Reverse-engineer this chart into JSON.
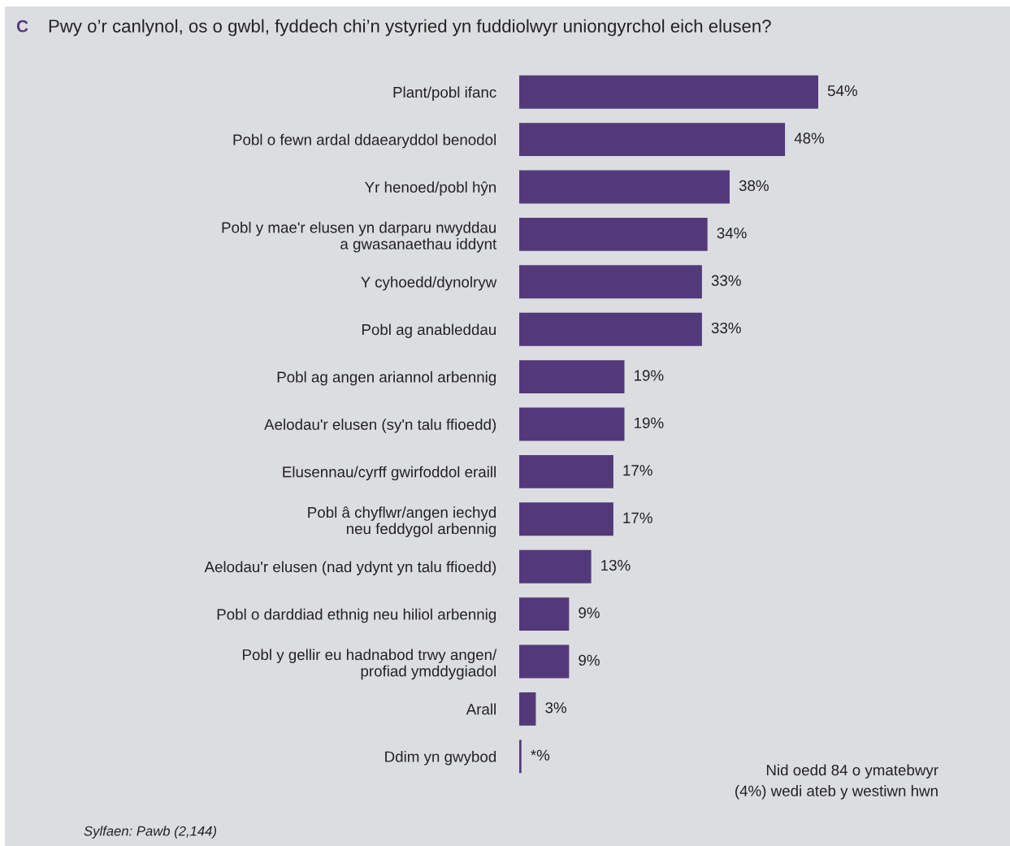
{
  "chart_data": {
    "type": "bar",
    "orientation": "horizontal",
    "title": "C",
    "subtitle": "Pwy o’r canlynol, os o gwbl, fyddech chi’n ystyried yn fuddiolwyr uniongyrchol eich elusen?",
    "categories": [
      "Plant/pobl ifanc",
      "Pobl o fewn ardal ddaearyddol benodol",
      "Yr henoed/pobl hŷn",
      "Pobl y mae'r elusen yn darparu nwyddau\na gwasanaethau iddynt",
      "Y cyhoedd/dynolryw",
      "Pobl ag anableddau",
      "Pobl ag angen ariannol arbennig",
      "Aelodau'r elusen (sy'n talu ffioedd)",
      "Elusennau/cyrff gwirfoddol eraill",
      "Pobl â chyflwr/angen iechyd\nneu feddygol arbennig",
      "Aelodau'r elusen (nad ydynt yn talu ffioedd)",
      "Pobl o darddiad ethnig neu hiliol arbennig",
      "Pobl y gellir eu hadnabod trwy angen/\nprofiad ymddygiadol",
      "Arall",
      "Ddim yn gwybod"
    ],
    "values": [
      54,
      48,
      38,
      34,
      33,
      33,
      19,
      19,
      17,
      17,
      13,
      9,
      9,
      3,
      0.4
    ],
    "value_labels": [
      "54%",
      "48%",
      "38%",
      "34%",
      "33%",
      "33%",
      "19%",
      "19%",
      "17%",
      "17%",
      "13%",
      "9%",
      "9%",
      "3%",
      "*%"
    ],
    "color": "#523a7a",
    "annotations": [
      "Nid oedd 84 o ymatebwyr\n(4%) wedi ateb y westiwn hwn",
      "Sylfaen: Pawb (2,144)"
    ]
  }
}
